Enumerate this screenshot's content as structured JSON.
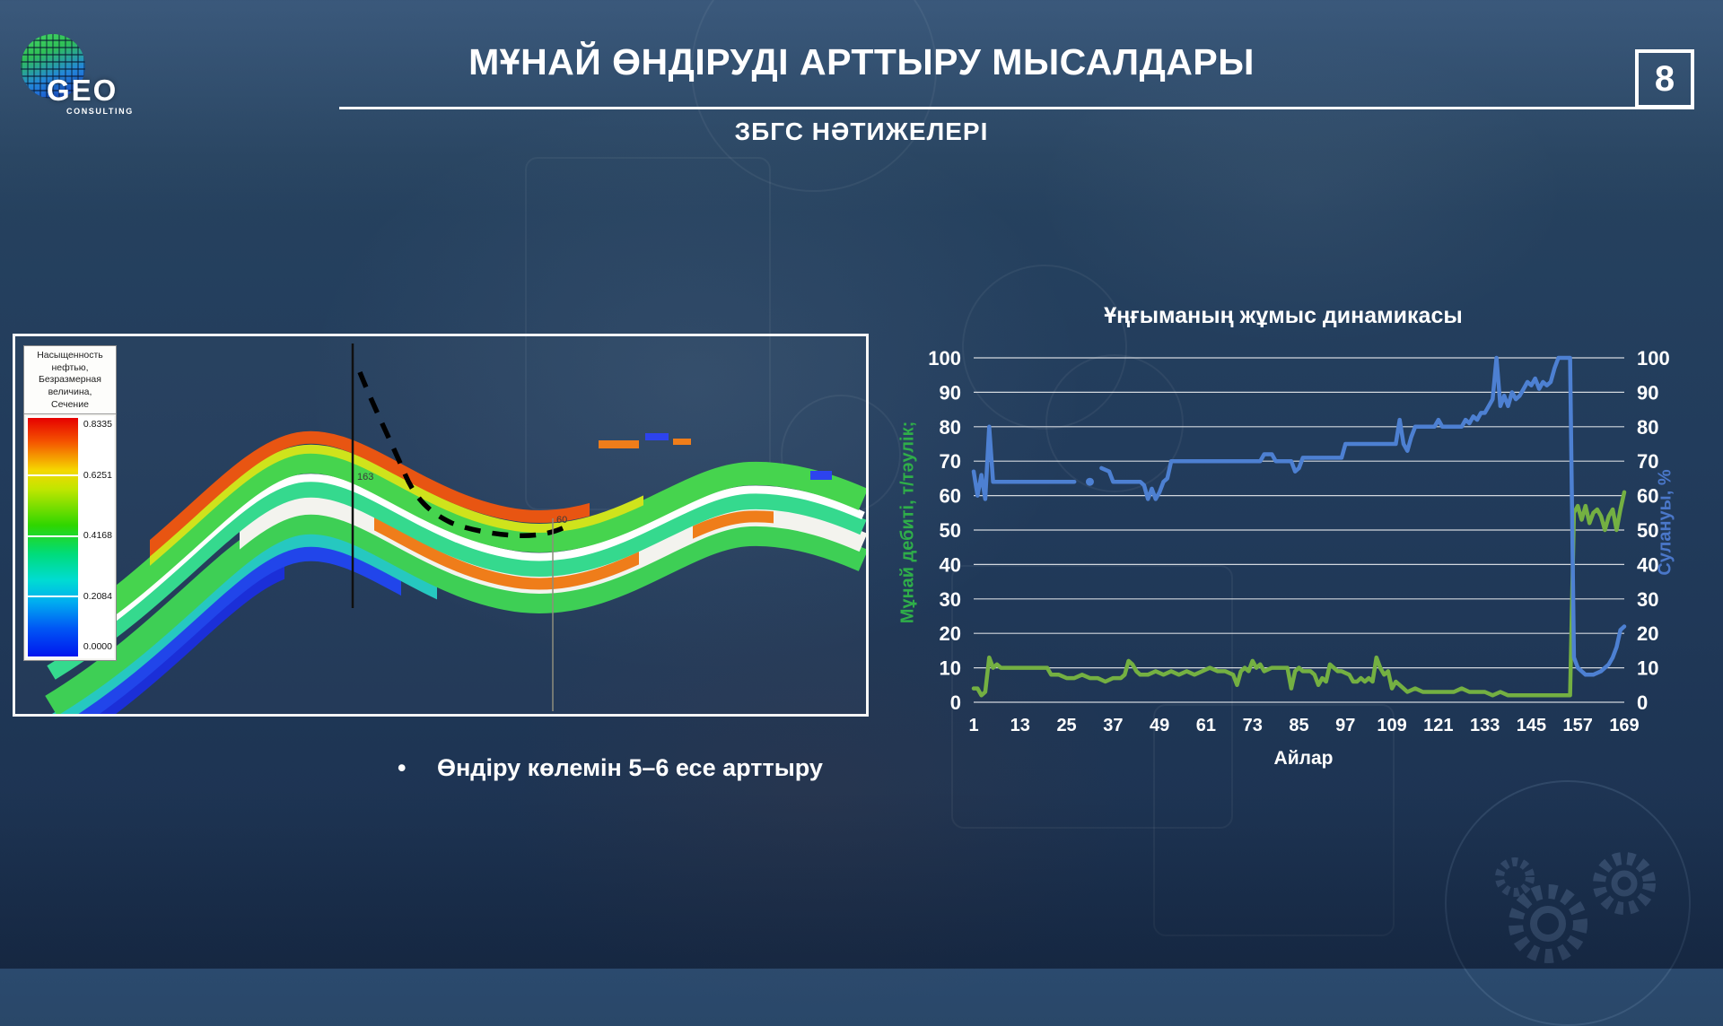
{
  "header": {
    "logo": {
      "brand": "GEO",
      "sub": "CONSULTING"
    },
    "title": "МҰНАЙ ӨНДІРУДІ АРТТЫРУ МЫСАЛДАРЫ",
    "subtitle": "ЗБГС НӘТИЖЕЛЕРІ",
    "page_number": "8"
  },
  "cross_section": {
    "legend": {
      "title_lines": [
        "Насыщенность",
        "нефтью,",
        "Безразмерная",
        "величина,",
        "Сечение"
      ],
      "values": [
        "0.8335",
        "0.6251",
        "0.4168",
        "0.2084",
        "0.0000"
      ]
    },
    "well_labels": {
      "vertical_well": "163",
      "offset_well": "60"
    }
  },
  "bullet": {
    "marker": "•",
    "text": "Өндіру көлемін 5–6 есе арттыру"
  },
  "chart_data": {
    "type": "line",
    "title": "Ұңғыманың жұмыс динамикасы",
    "xlabel": "Айлар",
    "ylabel_left": "Мұнай дебиті, т/тәулік;",
    "ylabel_right": "Сулануы, %",
    "x_ticks": [
      1,
      13,
      25,
      37,
      49,
      61,
      73,
      85,
      97,
      109,
      121,
      133,
      145,
      157,
      169
    ],
    "y_ticks": [
      0,
      10,
      20,
      30,
      40,
      50,
      60,
      70,
      80,
      90,
      100
    ],
    "xlim": [
      1,
      169
    ],
    "ylim": [
      0,
      100
    ],
    "grid": "horizontal-only",
    "legend_position": "none",
    "colors": {
      "oil": "#74b042",
      "water": "#4d80d2",
      "ylabel_left": "#2fae49",
      "ylabel_right": "#4a77c9",
      "ticks": "#ffffff",
      "gridline": "rgba(255,255,255,0.8)"
    },
    "series": [
      {
        "name": "Мұнай дебиті, т/тәулік",
        "axis": "left",
        "color_key": "oil",
        "segments": [
          [
            [
              1,
              4
            ],
            [
              2,
              4
            ],
            [
              3,
              2
            ],
            [
              4,
              3
            ],
            [
              5,
              13
            ],
            [
              6,
              10
            ],
            [
              7,
              11
            ],
            [
              8,
              10
            ],
            [
              10,
              10
            ],
            [
              12,
              10
            ],
            [
              14,
              10
            ],
            [
              16,
              10
            ],
            [
              18,
              10
            ],
            [
              20,
              10
            ],
            [
              21,
              8
            ],
            [
              23,
              8
            ],
            [
              25,
              7
            ],
            [
              27,
              7
            ],
            [
              29,
              8
            ],
            [
              31,
              7
            ],
            [
              33,
              7
            ],
            [
              35,
              6
            ],
            [
              37,
              7
            ],
            [
              39,
              7
            ],
            [
              40,
              8
            ],
            [
              41,
              12
            ],
            [
              42,
              11
            ],
            [
              43,
              9
            ],
            [
              44,
              8
            ],
            [
              46,
              8
            ],
            [
              48,
              9
            ],
            [
              50,
              8
            ],
            [
              52,
              9
            ],
            [
              54,
              8
            ],
            [
              56,
              9
            ],
            [
              58,
              8
            ],
            [
              60,
              9
            ],
            [
              62,
              10
            ],
            [
              64,
              9
            ],
            [
              66,
              9
            ],
            [
              68,
              8
            ],
            [
              69,
              5
            ],
            [
              70,
              9
            ],
            [
              71,
              10
            ],
            [
              72,
              9
            ],
            [
              73,
              12
            ],
            [
              74,
              10
            ],
            [
              75,
              11
            ],
            [
              76,
              9
            ],
            [
              78,
              10
            ],
            [
              80,
              10
            ],
            [
              82,
              10
            ],
            [
              83,
              4
            ],
            [
              84,
              9
            ],
            [
              85,
              10
            ],
            [
              86,
              9
            ],
            [
              88,
              9
            ],
            [
              89,
              8
            ],
            [
              90,
              5
            ],
            [
              91,
              7
            ],
            [
              92,
              6
            ],
            [
              93,
              11
            ],
            [
              94,
              10
            ],
            [
              95,
              9
            ],
            [
              96,
              9
            ],
            [
              98,
              8
            ],
            [
              99,
              6
            ],
            [
              100,
              6
            ],
            [
              101,
              7
            ],
            [
              102,
              6
            ],
            [
              103,
              7
            ],
            [
              104,
              6
            ],
            [
              105,
              13
            ],
            [
              106,
              10
            ],
            [
              107,
              8
            ],
            [
              108,
              9
            ],
            [
              109,
              4
            ],
            [
              110,
              6
            ],
            [
              111,
              5
            ],
            [
              112,
              4
            ],
            [
              113,
              3
            ],
            [
              115,
              4
            ],
            [
              117,
              3
            ],
            [
              119,
              3
            ],
            [
              121,
              3
            ],
            [
              123,
              3
            ],
            [
              125,
              3
            ],
            [
              127,
              4
            ],
            [
              129,
              3
            ],
            [
              131,
              3
            ],
            [
              133,
              3
            ],
            [
              135,
              2
            ],
            [
              137,
              3
            ],
            [
              139,
              2
            ],
            [
              141,
              2
            ],
            [
              143,
              2
            ],
            [
              145,
              2
            ],
            [
              147,
              2
            ],
            [
              149,
              2
            ],
            [
              151,
              2
            ],
            [
              153,
              2
            ],
            [
              155,
              2
            ],
            [
              156,
              55
            ],
            [
              157,
              57
            ],
            [
              158,
              53
            ],
            [
              159,
              57
            ],
            [
              160,
              52
            ],
            [
              161,
              55
            ],
            [
              162,
              56
            ],
            [
              163,
              54
            ],
            [
              164,
              50
            ],
            [
              165,
              54
            ],
            [
              166,
              56
            ],
            [
              167,
              50
            ],
            [
              168,
              56
            ],
            [
              169,
              61
            ]
          ]
        ]
      },
      {
        "name": "Сулануы, %",
        "axis": "right",
        "color_key": "water",
        "segments": [
          [
            [
              1,
              67
            ],
            [
              2,
              60
            ],
            [
              3,
              66
            ],
            [
              4,
              59
            ],
            [
              5,
              80
            ],
            [
              6,
              64
            ],
            [
              8,
              64
            ],
            [
              12,
              64
            ],
            [
              16,
              64
            ],
            [
              20,
              64
            ],
            [
              24,
              64
            ],
            [
              27,
              64
            ]
          ],
          [
            [
              31,
              64
            ]
          ],
          [
            [
              34,
              68
            ],
            [
              36,
              67
            ],
            [
              37,
              64
            ],
            [
              40,
              64
            ],
            [
              43,
              64
            ],
            [
              44,
              64
            ],
            [
              45,
              63
            ],
            [
              46,
              59
            ],
            [
              47,
              62
            ],
            [
              48,
              59
            ],
            [
              49,
              61
            ],
            [
              50,
              64
            ],
            [
              51,
              65
            ],
            [
              52,
              70
            ],
            [
              56,
              70
            ],
            [
              60,
              70
            ],
            [
              64,
              70
            ],
            [
              68,
              70
            ],
            [
              72,
              70
            ],
            [
              75,
              70
            ],
            [
              76,
              72
            ],
            [
              78,
              72
            ],
            [
              79,
              70
            ],
            [
              83,
              70
            ],
            [
              84,
              67
            ],
            [
              85,
              68
            ],
            [
              86,
              71
            ],
            [
              90,
              71
            ],
            [
              93,
              71
            ],
            [
              96,
              71
            ],
            [
              97,
              75
            ],
            [
              100,
              75
            ],
            [
              104,
              75
            ],
            [
              108,
              75
            ],
            [
              110,
              75
            ],
            [
              111,
              82
            ],
            [
              112,
              75
            ],
            [
              113,
              73
            ],
            [
              114,
              77
            ],
            [
              115,
              80
            ],
            [
              118,
              80
            ],
            [
              120,
              80
            ],
            [
              121,
              82
            ],
            [
              122,
              80
            ],
            [
              125,
              80
            ],
            [
              127,
              80
            ],
            [
              128,
              82
            ],
            [
              129,
              81
            ],
            [
              130,
              83
            ],
            [
              131,
              82
            ],
            [
              132,
              84
            ],
            [
              133,
              84
            ],
            [
              134,
              86
            ],
            [
              135,
              88
            ],
            [
              136,
              100
            ],
            [
              137,
              86
            ],
            [
              138,
              89
            ],
            [
              139,
              86
            ],
            [
              140,
              90
            ],
            [
              141,
              88
            ],
            [
              142,
              89
            ],
            [
              143,
              91
            ],
            [
              144,
              93
            ],
            [
              145,
              92
            ],
            [
              146,
              94
            ],
            [
              147,
              91
            ],
            [
              148,
              93
            ],
            [
              149,
              92
            ],
            [
              150,
              93
            ],
            [
              151,
              97
            ],
            [
              152,
              100
            ],
            [
              153,
              100
            ],
            [
              154,
              100
            ],
            [
              155,
              100
            ],
            [
              156,
              13
            ],
            [
              157,
              10
            ],
            [
              158,
              9
            ],
            [
              159,
              8
            ],
            [
              161,
              8
            ],
            [
              163,
              9
            ],
            [
              164,
              10
            ],
            [
              165,
              11
            ],
            [
              166,
              13
            ],
            [
              167,
              16
            ],
            [
              168,
              21
            ],
            [
              169,
              22
            ]
          ]
        ]
      }
    ]
  }
}
